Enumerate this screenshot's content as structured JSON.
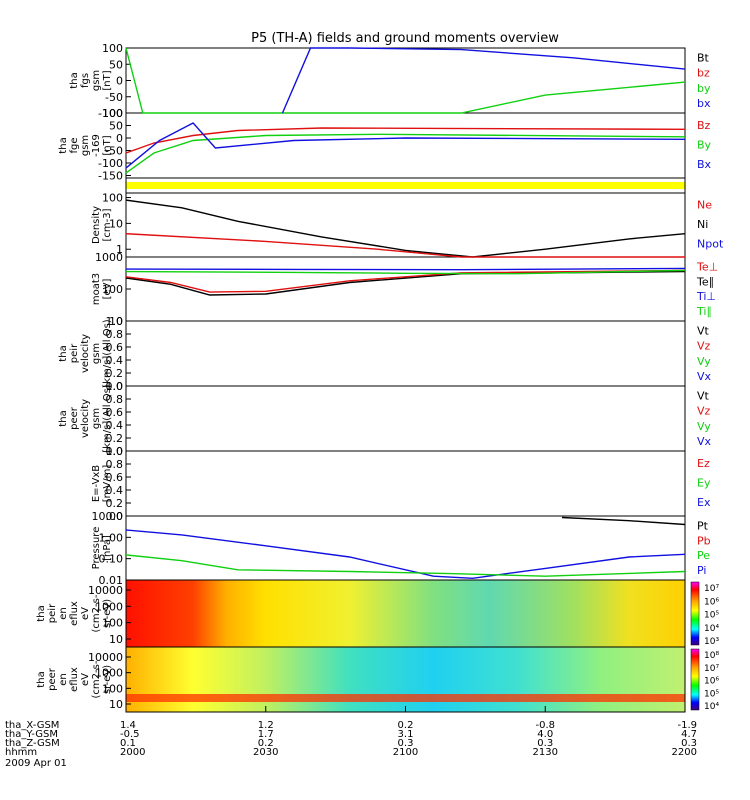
{
  "title": "P5 (TH-A) fields and ground moments overview",
  "colors": {
    "black": "#000000",
    "red": "#e01010",
    "green": "#10d010",
    "blue": "#1010e0",
    "yellow": "#ffff00"
  },
  "panels": [
    {
      "id": "fgs",
      "ylabel": [
        "tha",
        "fgs",
        "gsm",
        "[nT]"
      ],
      "ticks": [
        "100",
        "50",
        "0",
        "-50",
        "-100"
      ],
      "legend": [
        {
          "t": "Bt",
          "c": "black"
        },
        {
          "t": "bz",
          "c": "red"
        },
        {
          "t": "by",
          "c": "green"
        },
        {
          "t": "bx",
          "c": "blue"
        }
      ]
    },
    {
      "id": "fge",
      "ylabel": [
        "tha",
        "fge",
        "gsm",
        "-169",
        "[nT]"
      ],
      "ticks": [
        "100",
        "50",
        "0",
        "-50",
        "-100",
        "-150"
      ],
      "legend": [
        {
          "t": "Bz",
          "c": "red"
        },
        {
          "t": "By",
          "c": "green"
        },
        {
          "t": "Bx",
          "c": "blue"
        }
      ]
    },
    {
      "id": "bar",
      "ylabel": [],
      "ticks": [],
      "legend": []
    },
    {
      "id": "density",
      "ylabel": [
        "Density",
        "[cm-3]"
      ],
      "ticks": [
        "100",
        "10",
        "1"
      ],
      "legend": [
        {
          "t": "Ne",
          "c": "red"
        },
        {
          "t": "Ni",
          "c": "black"
        },
        {
          "t": "Npot",
          "c": "blue"
        }
      ]
    },
    {
      "id": "temp",
      "ylabel": [
        "moat3",
        "[eV]"
      ],
      "ticks": [
        "1000",
        "100",
        "10"
      ],
      "legend": [
        {
          "t": "Te⊥",
          "c": "red"
        },
        {
          "t": "Te∥",
          "c": "black"
        },
        {
          "t": "Ti⊥",
          "c": "blue"
        },
        {
          "t": "Ti∥",
          "c": "green"
        }
      ]
    },
    {
      "id": "peir",
      "ylabel": [
        "tha",
        "peir",
        "velocity",
        "gsm",
        "[km/s](All Qs)"
      ],
      "ticks": [
        "1.0",
        "0.8",
        "0.6",
        "0.4",
        "0.2",
        "0.0"
      ],
      "legend": [
        {
          "t": "Vt",
          "c": "black"
        },
        {
          "t": "Vz",
          "c": "red"
        },
        {
          "t": "Vy",
          "c": "green"
        },
        {
          "t": "Vx",
          "c": "blue"
        }
      ]
    },
    {
      "id": "peer",
      "ylabel": [
        "tha",
        "peer",
        "velocity",
        "gsm",
        "[km/s](All Qs)"
      ],
      "ticks": [
        "1.0",
        "0.8",
        "0.6",
        "0.4",
        "0.2",
        "0.0"
      ],
      "legend": [
        {
          "t": "Vt",
          "c": "black"
        },
        {
          "t": "Vz",
          "c": "red"
        },
        {
          "t": "Vy",
          "c": "green"
        },
        {
          "t": "Vx",
          "c": "blue"
        }
      ]
    },
    {
      "id": "efield",
      "ylabel": [
        "E=-VxB",
        "[mV/m]"
      ],
      "ticks": [
        "1.0",
        "0.8",
        "0.6",
        "0.4",
        "0.2",
        "0.0"
      ],
      "legend": [
        {
          "t": "Ez",
          "c": "red"
        },
        {
          "t": "Ey",
          "c": "green"
        },
        {
          "t": "Ex",
          "c": "blue"
        }
      ]
    },
    {
      "id": "pressure",
      "ylabel": [
        "Pressure",
        "[nPa]"
      ],
      "ticks": [
        "10.00",
        "1.00",
        "0.10",
        "0.01"
      ],
      "legend": [
        {
          "t": "Pt",
          "c": "black"
        },
        {
          "t": "Pb",
          "c": "red"
        },
        {
          "t": "Pe",
          "c": "green"
        },
        {
          "t": "Pi",
          "c": "blue"
        }
      ]
    },
    {
      "id": "peir_en",
      "ylabel": [
        "tha",
        "peir",
        "en",
        "eflux",
        "eV",
        "(cm2-s-",
        "sr-eV)"
      ],
      "ticks": [
        "10000",
        "1000",
        "100",
        "10"
      ],
      "colorbar": [
        "10⁷",
        "10⁶",
        "10⁵",
        "10⁴",
        "10³"
      ],
      "legend": []
    },
    {
      "id": "peer_en",
      "ylabel": [
        "tha",
        "peer",
        "en",
        "eflux",
        "eV",
        "(cm2-s-",
        "sr-eV)"
      ],
      "ticks": [
        "10000",
        "1000",
        "100",
        "10"
      ],
      "colorbar": [
        "10⁸",
        "10⁷",
        "10⁶",
        "10⁵",
        "10⁴"
      ],
      "legend": []
    }
  ],
  "xaxis": {
    "rows": [
      {
        "label": "tha_X-GSM",
        "values": [
          "1.4",
          "1.2",
          "0.2",
          "-0.8",
          "-1.9"
        ]
      },
      {
        "label": "tha_Y-GSM",
        "values": [
          "-0.5",
          "1.7",
          "3.1",
          "4.0",
          "4.7"
        ]
      },
      {
        "label": "tha_Z-GSM",
        "values": [
          "0.1",
          "0.2",
          "0.3",
          "0.3",
          "0.3"
        ]
      },
      {
        "label": "hhmm",
        "values": [
          "2000",
          "2030",
          "2100",
          "2130",
          "2200"
        ]
      }
    ],
    "date": "2009 Apr 01"
  },
  "chart_data": {
    "type": "line",
    "title": "P5 (TH-A) fields and ground moments overview",
    "x": [
      "2000",
      "2030",
      "2100",
      "2130",
      "2200"
    ],
    "series": [
      {
        "name": "by",
        "panel": "fgs",
        "points": [
          [
            0.0,
            150
          ],
          [
            0.03,
            -100
          ],
          [
            0.6,
            -100
          ],
          [
            0.75,
            -45
          ],
          [
            1.0,
            -5
          ]
        ]
      },
      {
        "name": "bx",
        "panel": "fgs",
        "points": [
          [
            0.28,
            -100
          ],
          [
            0.33,
            110
          ],
          [
            0.4,
            115
          ],
          [
            0.6,
            95
          ],
          [
            0.8,
            70
          ],
          [
            1.0,
            35
          ]
        ]
      },
      {
        "name": "Bz",
        "panel": "fge",
        "points": [
          [
            0.0,
            -60
          ],
          [
            0.05,
            -20
          ],
          [
            0.12,
            10
          ],
          [
            0.2,
            30
          ],
          [
            0.35,
            40
          ],
          [
            1.0,
            35
          ]
        ]
      },
      {
        "name": "By",
        "panel": "fge",
        "points": [
          [
            0.0,
            -140
          ],
          [
            0.05,
            -60
          ],
          [
            0.12,
            -10
          ],
          [
            0.25,
            10
          ],
          [
            0.45,
            15
          ],
          [
            1.0,
            5
          ]
        ]
      },
      {
        "name": "Bx",
        "panel": "fge",
        "points": [
          [
            0.0,
            -120
          ],
          [
            0.06,
            -10
          ],
          [
            0.12,
            60
          ],
          [
            0.16,
            -40
          ],
          [
            0.3,
            -10
          ],
          [
            0.5,
            0
          ],
          [
            1.0,
            -5
          ]
        ]
      },
      {
        "name": "Ni",
        "panel": "density",
        "points": [
          [
            0.0,
            80
          ],
          [
            0.1,
            40
          ],
          [
            0.2,
            12
          ],
          [
            0.35,
            3
          ],
          [
            0.5,
            0.9
          ],
          [
            0.62,
            0.4
          ],
          [
            0.75,
            1
          ],
          [
            0.9,
            2.5
          ],
          [
            1.0,
            4
          ]
        ]
      },
      {
        "name": "Ne",
        "panel": "density",
        "points": [
          [
            0.0,
            4
          ],
          [
            0.25,
            2
          ],
          [
            0.45,
            1
          ],
          [
            0.6,
            0.5
          ],
          [
            0.75,
            0.4
          ],
          [
            1.0,
            0.4
          ]
        ]
      },
      {
        "name": "Te∥",
        "panel": "temp",
        "points": [
          [
            0.0,
            220
          ],
          [
            0.08,
            140
          ],
          [
            0.15,
            65
          ],
          [
            0.25,
            70
          ],
          [
            0.4,
            160
          ],
          [
            0.6,
            300
          ],
          [
            1.0,
            350
          ]
        ]
      },
      {
        "name": "Te⊥",
        "panel": "temp",
        "points": [
          [
            0.0,
            240
          ],
          [
            0.08,
            160
          ],
          [
            0.15,
            80
          ],
          [
            0.25,
            85
          ],
          [
            0.4,
            180
          ],
          [
            0.6,
            320
          ],
          [
            1.0,
            380
          ]
        ]
      },
      {
        "name": "Ti⊥",
        "panel": "temp",
        "points": [
          [
            0.0,
            420
          ],
          [
            0.3,
            410
          ],
          [
            0.6,
            400
          ],
          [
            1.0,
            440
          ]
        ]
      },
      {
        "name": "Ti∥",
        "panel": "temp",
        "points": [
          [
            0.0,
            350
          ],
          [
            0.3,
            330
          ],
          [
            0.5,
            310
          ],
          [
            0.7,
            300
          ],
          [
            1.0,
            380
          ]
        ]
      },
      {
        "name": "Pt",
        "panel": "pressure",
        "points": [
          [
            0.78,
            8.5
          ],
          [
            0.9,
            6.0
          ],
          [
            1.0,
            4.0
          ]
        ]
      },
      {
        "name": "Pi",
        "panel": "pressure",
        "points": [
          [
            0.0,
            2.2
          ],
          [
            0.1,
            1.3
          ],
          [
            0.25,
            0.4
          ],
          [
            0.4,
            0.12
          ],
          [
            0.55,
            0.015
          ],
          [
            0.62,
            0.012
          ],
          [
            0.75,
            0.035
          ],
          [
            0.9,
            0.12
          ],
          [
            1.0,
            0.16
          ]
        ]
      },
      {
        "name": "Pe",
        "panel": "pressure",
        "points": [
          [
            0.0,
            0.15
          ],
          [
            0.1,
            0.08
          ],
          [
            0.2,
            0.03
          ],
          [
            0.4,
            0.025
          ],
          [
            0.58,
            0.02
          ],
          [
            0.75,
            0.015
          ],
          [
            1.0,
            0.025
          ]
        ]
      }
    ]
  }
}
